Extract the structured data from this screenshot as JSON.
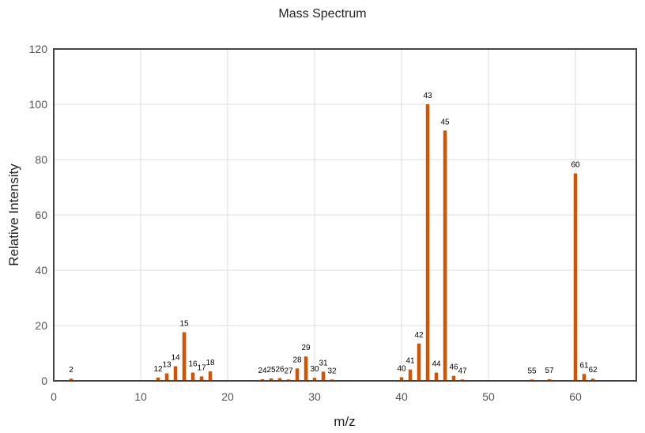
{
  "chart_data": {
    "type": "bar",
    "title": "Mass Spectrum",
    "xlabel": "m/z",
    "ylabel": "Relative Intensity",
    "xlim": [
      0,
      67
    ],
    "ylim": [
      0,
      120
    ],
    "xticks": [
      0,
      10,
      20,
      30,
      40,
      50,
      60
    ],
    "yticks": [
      0,
      20,
      40,
      60,
      80,
      100,
      120
    ],
    "grid": true,
    "bar_color": "#d35400",
    "peaks": [
      {
        "mz": 2,
        "intensity": 0.8,
        "label": "2"
      },
      {
        "mz": 12,
        "intensity": 1.2,
        "label": "12"
      },
      {
        "mz": 13,
        "intensity": 2.7,
        "label": "13"
      },
      {
        "mz": 14,
        "intensity": 5.3,
        "label": "14"
      },
      {
        "mz": 15,
        "intensity": 17.6,
        "label": "15"
      },
      {
        "mz": 16,
        "intensity": 3.0,
        "label": "16"
      },
      {
        "mz": 17,
        "intensity": 1.6,
        "label": "17"
      },
      {
        "mz": 18,
        "intensity": 3.4,
        "label": "18"
      },
      {
        "mz": 24,
        "intensity": 0.6,
        "label": "24"
      },
      {
        "mz": 25,
        "intensity": 0.9,
        "label": "25"
      },
      {
        "mz": 26,
        "intensity": 1.0,
        "label": "26"
      },
      {
        "mz": 27,
        "intensity": 0.5,
        "label": "27"
      },
      {
        "mz": 28,
        "intensity": 4.5,
        "label": "28"
      },
      {
        "mz": 29,
        "intensity": 8.8,
        "label": "29"
      },
      {
        "mz": 30,
        "intensity": 1.1,
        "label": "30"
      },
      {
        "mz": 31,
        "intensity": 3.3,
        "label": "31"
      },
      {
        "mz": 32,
        "intensity": 0.5,
        "label": "32"
      },
      {
        "mz": 40,
        "intensity": 1.3,
        "label": "40"
      },
      {
        "mz": 41,
        "intensity": 4.1,
        "label": "41"
      },
      {
        "mz": 42,
        "intensity": 13.5,
        "label": "42"
      },
      {
        "mz": 43,
        "intensity": 100,
        "label": "43"
      },
      {
        "mz": 44,
        "intensity": 3.0,
        "label": "44"
      },
      {
        "mz": 45,
        "intensity": 90.5,
        "label": "45"
      },
      {
        "mz": 46,
        "intensity": 1.8,
        "label": "46"
      },
      {
        "mz": 47,
        "intensity": 0.5,
        "label": "47"
      },
      {
        "mz": 55,
        "intensity": 0.5,
        "label": "55"
      },
      {
        "mz": 57,
        "intensity": 0.6,
        "label": "57"
      },
      {
        "mz": 60,
        "intensity": 75.0,
        "label": "60"
      },
      {
        "mz": 61,
        "intensity": 2.5,
        "label": "61"
      },
      {
        "mz": 62,
        "intensity": 0.8,
        "label": "62"
      }
    ]
  }
}
